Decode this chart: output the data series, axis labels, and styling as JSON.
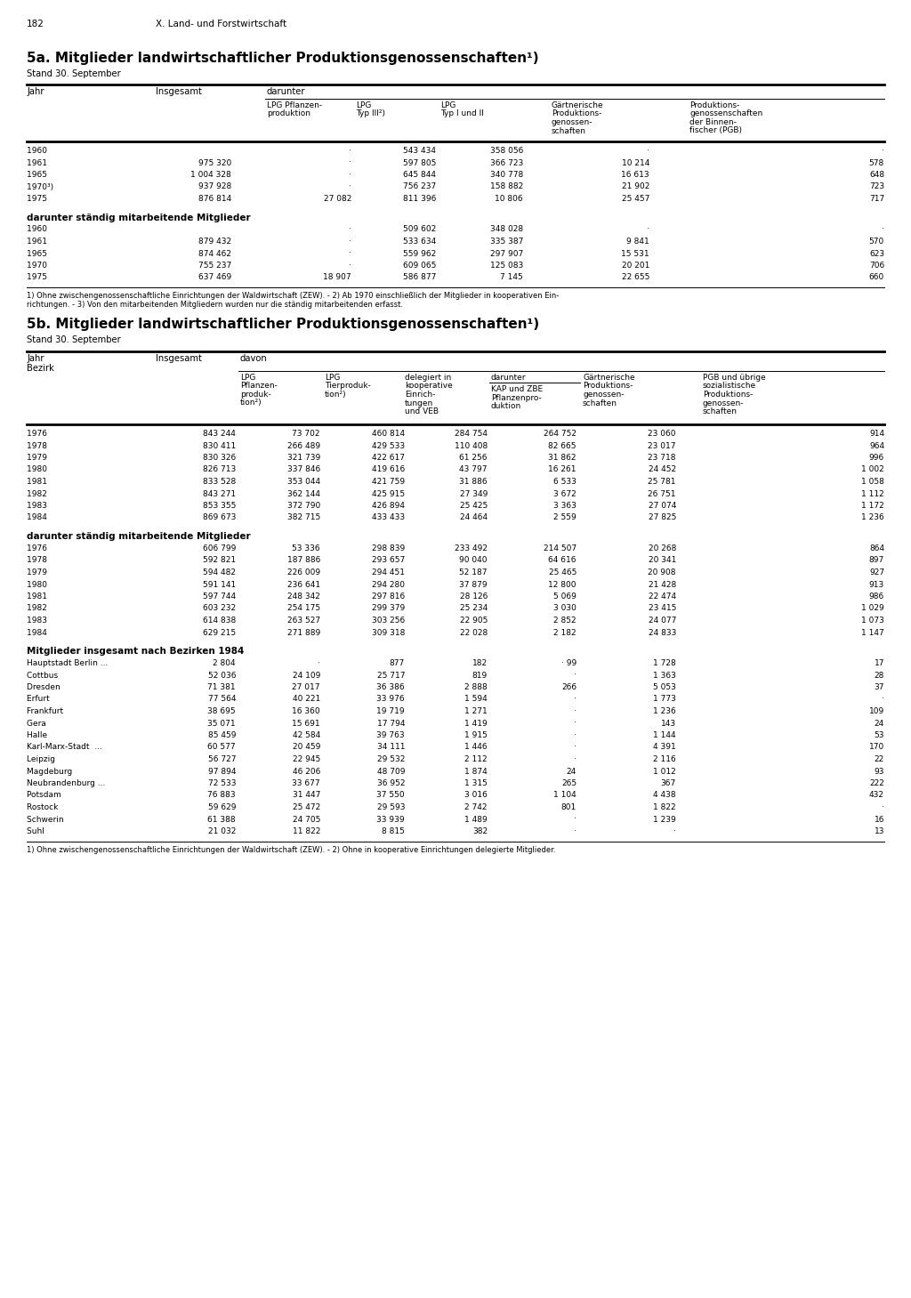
{
  "page_num": "182",
  "chapter": "X. Land- und Forstwirtschaft",
  "section_5a_title": "5a. Mitglieder landwirtschaftlicher Produktionsgenossenschaften¹)",
  "section_5a_subtitle": "Stand 30. September",
  "section_5b_title": "5b. Mitglieder landwirtschaftlicher Produktionsgenossenschaften¹)",
  "section_5b_subtitle": "Stand 30. September",
  "table5a_data": [
    [
      "1960              ",
      "",
      "·",
      "543 434",
      "358 056",
      "·",
      "·"
    ],
    [
      "1961              ",
      "975 320",
      "·",
      "597 805",
      "366 723",
      "10 214",
      "578"
    ],
    [
      "1965              ",
      "1 004 328",
      "·",
      "645 844",
      "340 778",
      "16 613",
      "648"
    ],
    [
      "1970³)              ",
      "937 928",
      "·",
      "756 237",
      "158 882",
      "21 902",
      "723"
    ],
    [
      "1975              ",
      "876 814",
      "27 082",
      "811 396",
      "10 806",
      "25 457",
      "717"
    ]
  ],
  "table5a_section2_header": "darunter ständig mitarbeitende Mitglieder",
  "table5a_data2": [
    [
      "1960              ",
      "",
      "·",
      "509 602",
      "348 028",
      "·",
      "·"
    ],
    [
      "1961              ",
      "879 432",
      "·",
      "533 634",
      "335 387",
      "9 841",
      "570"
    ],
    [
      "1965              ",
      "874 462",
      "·",
      "559 962",
      "297 907",
      "15 531",
      "623"
    ],
    [
      "1970              ",
      "755 237",
      "·",
      "609 065",
      "125 083",
      "20 201",
      "706"
    ],
    [
      "1975              ",
      "637 469",
      "18 907",
      "586 877",
      "7 145",
      "22 655",
      "660"
    ]
  ],
  "table5a_footnote1": "1) Ohne zwischengenossenschaftliche Einrichtungen der Waldwirtschaft (ZEW). - 2) Ab 1970 einschließlich der Mitglieder in kooperativen Ein-",
  "table5a_footnote2": "richtungen. - 3) Von den mitarbeitenden Mitgliedern wurden nur die ständig mitarbeitenden erfasst.",
  "table5b_data": [
    [
      "1976           ",
      "843 244",
      "73 702",
      "460 814",
      "284 754",
      "264 752",
      "23 060",
      "914"
    ],
    [
      "1978           ",
      "830 411",
      "266 489",
      "429 533",
      "110 408",
      "82 665",
      "23 017",
      "964"
    ],
    [
      "1979           ",
      "830 326",
      "321 739",
      "422 617",
      "61 256",
      "31 862",
      "23 718",
      "996"
    ],
    [
      "1980           ",
      "826 713",
      "337 846",
      "419 616",
      "43 797",
      "16 261",
      "24 452",
      "1 002"
    ],
    [
      "1981           ",
      "833 528",
      "353 044",
      "421 759",
      "31 886",
      "6 533",
      "25 781",
      "1 058"
    ],
    [
      "1982           ",
      "843 271",
      "362 144",
      "425 915",
      "27 349",
      "3 672",
      "26 751",
      "1 112"
    ],
    [
      "1983           ",
      "853 355",
      "372 790",
      "426 894",
      "25 425",
      "3 363",
      "27 074",
      "1 172"
    ],
    [
      "1984           ",
      "869 673",
      "382 715",
      "433 433",
      "24 464",
      "2 559",
      "27 825",
      "1 236"
    ]
  ],
  "table5b_section2_header": "darunter ständig mitarbeitende Mitglieder",
  "table5b_data2": [
    [
      "1976           ",
      "606 799",
      "53 336",
      "298 839",
      "233 492",
      "214 507",
      "20 268",
      "864"
    ],
    [
      "1978           ",
      "592 821",
      "187 886",
      "293 657",
      "90 040",
      "64 616",
      "20 341",
      "897"
    ],
    [
      "1979           ",
      "594 482",
      "226 009",
      "294 451",
      "52 187",
      "25 465",
      "20 908",
      "927"
    ],
    [
      "1980           ",
      "591 141",
      "236 641",
      "294 280",
      "37 879",
      "12 800",
      "21 428",
      "913"
    ],
    [
      "1981           ",
      "597 744",
      "248 342",
      "297 816",
      "28 126",
      "5 069",
      "22 474",
      "986"
    ],
    [
      "1982           ",
      "603 232",
      "254 175",
      "299 379",
      "25 234",
      "3 030",
      "23 415",
      "1 029"
    ],
    [
      "1983           ",
      "614 838",
      "263 527",
      "303 256",
      "22 905",
      "2 852",
      "24 077",
      "1 073"
    ],
    [
      "1984           ",
      "629 215",
      "271 889",
      "309 318",
      "22 028",
      "2 182",
      "24 833",
      "1 147"
    ]
  ],
  "table5b_section3_header": "Mitglieder insgesamt nach Bezirken 1984",
  "table5b_data3": [
    [
      "Hauptstadt Berlin ...",
      "2 804",
      "·",
      "877",
      "182",
      "· 99",
      "1 728",
      "17"
    ],
    [
      "Cottbus         ",
      "52 036",
      "24 109",
      "25 717",
      "819",
      "·",
      "1 363",
      "28"
    ],
    [
      "Dresden        ",
      "71 381",
      "27 017",
      "36 386",
      "2 888",
      "266",
      "5 053",
      "37"
    ],
    [
      "Erfurt          ",
      "77 564",
      "40 221",
      "33 976",
      "1 594",
      "·",
      "1 773",
      "·"
    ],
    [
      "Frankfurt       ",
      "38 695",
      "16 360",
      "19 719",
      "1 271",
      "·",
      "1 236",
      "109"
    ],
    [
      "Gera           ",
      "35 071",
      "15 691",
      "17 794",
      "1 419",
      "·",
      "143",
      "24"
    ],
    [
      "Halle          ",
      "85 459",
      "42 584",
      "39 763",
      "1 915",
      "·",
      "1 144",
      "53"
    ],
    [
      "Karl-Marx-Stadt  ...",
      "60 577",
      "20 459",
      "34 111",
      "1 446",
      "·",
      "4 391",
      "170"
    ],
    [
      "Leipzig          ",
      "56 727",
      "22 945",
      "29 532",
      "2 112",
      "·",
      "2 116",
      "22"
    ],
    [
      "Magdeburg      ",
      "97 894",
      "46 206",
      "48 709",
      "1 874",
      "24",
      "1 012",
      "93"
    ],
    [
      "Neubrandenburg ...",
      "72 533",
      "33 677",
      "36 952",
      "1 315",
      "265",
      "367",
      "222"
    ],
    [
      "Potsdam         ",
      "76 883",
      "31 447",
      "37 550",
      "3 016",
      "1 104",
      "4 438",
      "432"
    ],
    [
      "Rostock         ",
      "59 629",
      "25 472",
      "29 593",
      "2 742",
      "801",
      "1 822",
      "·"
    ],
    [
      "Schwerin        ",
      "61 388",
      "24 705",
      "33 939",
      "1 489",
      "·",
      "1 239",
      "16"
    ],
    [
      "Suhl           ",
      "21 032",
      "11 822",
      "8 815",
      "382",
      "·",
      "·",
      "13"
    ]
  ],
  "table5b_footnote": "1) Ohne zwischengenossenschaftliche Einrichtungen der Waldwirtschaft (ZEW). - 2) Ohne in kooperative Einrichtungen delegierte Mitglieder."
}
